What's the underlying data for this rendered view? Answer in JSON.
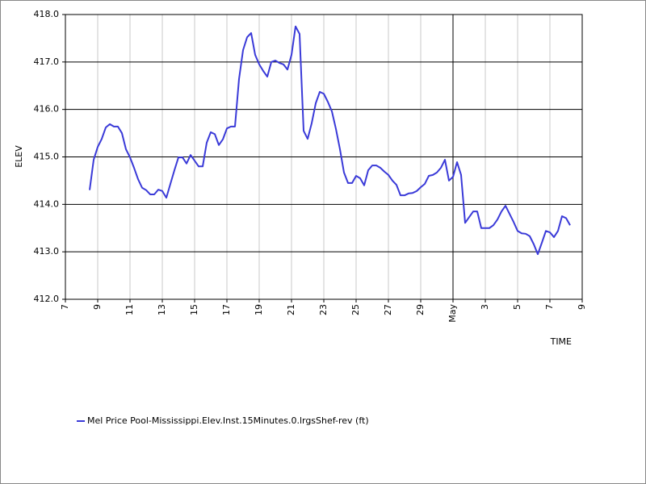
{
  "chart_data": {
    "type": "line",
    "xlabel": "TIME",
    "ylabel": "ELEV",
    "xlim": [
      7,
      39
    ],
    "xticks": [
      7,
      9,
      11,
      13,
      15,
      17,
      19,
      21,
      23,
      25,
      27,
      29,
      {
        "value": 31,
        "label": "May"
      },
      {
        "value": 33,
        "label": "3"
      },
      {
        "value": 35,
        "label": "5"
      },
      {
        "value": 37,
        "label": "7"
      },
      {
        "value": 39,
        "label": "9"
      }
    ],
    "ylim": [
      412,
      418
    ],
    "yticks": [
      {
        "value": 412,
        "label": "412.0"
      },
      {
        "value": 413,
        "label": "413.0"
      },
      {
        "value": 414,
        "label": "414.0"
      },
      {
        "value": 415,
        "label": "415.0"
      },
      {
        "value": 416,
        "label": "416.0"
      },
      {
        "value": 417,
        "label": "417.0"
      },
      {
        "value": 418,
        "label": "418.0"
      }
    ],
    "grid": true,
    "legend": "bottom",
    "x": [
      8.5,
      8.75,
      9,
      9.25,
      9.5,
      9.75,
      10,
      10.25,
      10.5,
      10.75,
      11,
      11.25,
      11.5,
      11.75,
      12,
      12.25,
      12.5,
      12.75,
      13,
      13.25,
      13.5,
      13.75,
      14,
      14.25,
      14.5,
      14.75,
      15,
      15.25,
      15.5,
      15.75,
      16,
      16.25,
      16.5,
      16.75,
      17,
      17.25,
      17.5,
      17.75,
      18,
      18.25,
      18.5,
      18.75,
      19,
      19.25,
      19.5,
      19.75,
      20,
      20.25,
      20.5,
      20.75,
      21,
      21.25,
      21.5,
      21.75,
      22,
      22.25,
      22.5,
      22.75,
      23,
      23.25,
      23.5,
      23.75,
      24,
      24.25,
      24.5,
      24.75,
      25,
      25.25,
      25.5,
      25.75,
      26,
      26.25,
      26.5,
      26.75,
      27,
      27.25,
      27.5,
      27.75,
      28,
      28.25,
      28.5,
      28.75,
      29,
      29.25,
      29.5,
      29.75,
      30,
      30.25,
      30.5,
      30.75,
      31,
      31.25,
      31.5,
      31.75,
      32,
      32.25,
      32.5,
      32.75,
      33,
      33.25,
      33.5,
      33.75,
      34,
      34.25,
      34.5,
      34.75,
      35,
      35.25,
      35.5,
      35.75,
      36,
      36.25,
      36.5,
      36.75,
      37,
      37.25,
      37.5,
      37.75,
      38,
      38.25
    ],
    "series": [
      {
        "name": "Mel Price Pool-Mississippi.Elev.Inst.15Minutes.0.lrgsShef-rev (ft)",
        "color": "#3a3ad8",
        "values": [
          414.3,
          414.94,
          415.21,
          415.38,
          415.62,
          415.69,
          415.64,
          415.64,
          415.5,
          415.16,
          414.99,
          414.77,
          414.53,
          414.35,
          414.3,
          414.21,
          414.21,
          414.31,
          414.28,
          414.14,
          414.43,
          414.72,
          414.99,
          414.99,
          414.86,
          415.04,
          414.92,
          414.8,
          414.8,
          415.3,
          415.52,
          415.48,
          415.25,
          415.37,
          415.6,
          415.64,
          415.64,
          416.64,
          417.25,
          417.52,
          417.61,
          417.15,
          416.95,
          416.81,
          416.69,
          417.0,
          417.03,
          416.98,
          416.95,
          416.84,
          417.15,
          417.75,
          417.59,
          415.55,
          415.38,
          415.71,
          416.13,
          416.37,
          416.33,
          416.16,
          415.96,
          415.59,
          415.16,
          414.67,
          414.45,
          414.45,
          414.6,
          414.55,
          414.4,
          414.72,
          414.82,
          414.82,
          414.77,
          414.69,
          414.62,
          414.5,
          414.41,
          414.19,
          414.19,
          414.23,
          414.24,
          414.28,
          414.36,
          414.43,
          414.6,
          414.62,
          414.67,
          414.77,
          414.94,
          414.5,
          414.58,
          414.89,
          414.62,
          413.61,
          413.73,
          413.85,
          413.85,
          413.5,
          413.5,
          413.5,
          413.56,
          413.68,
          413.85,
          413.97,
          413.8,
          413.63,
          413.44,
          413.39,
          413.38,
          413.33,
          413.16,
          412.95,
          413.19,
          413.44,
          413.41,
          413.31,
          413.44,
          413.75,
          413.71,
          413.56
        ]
      }
    ]
  }
}
